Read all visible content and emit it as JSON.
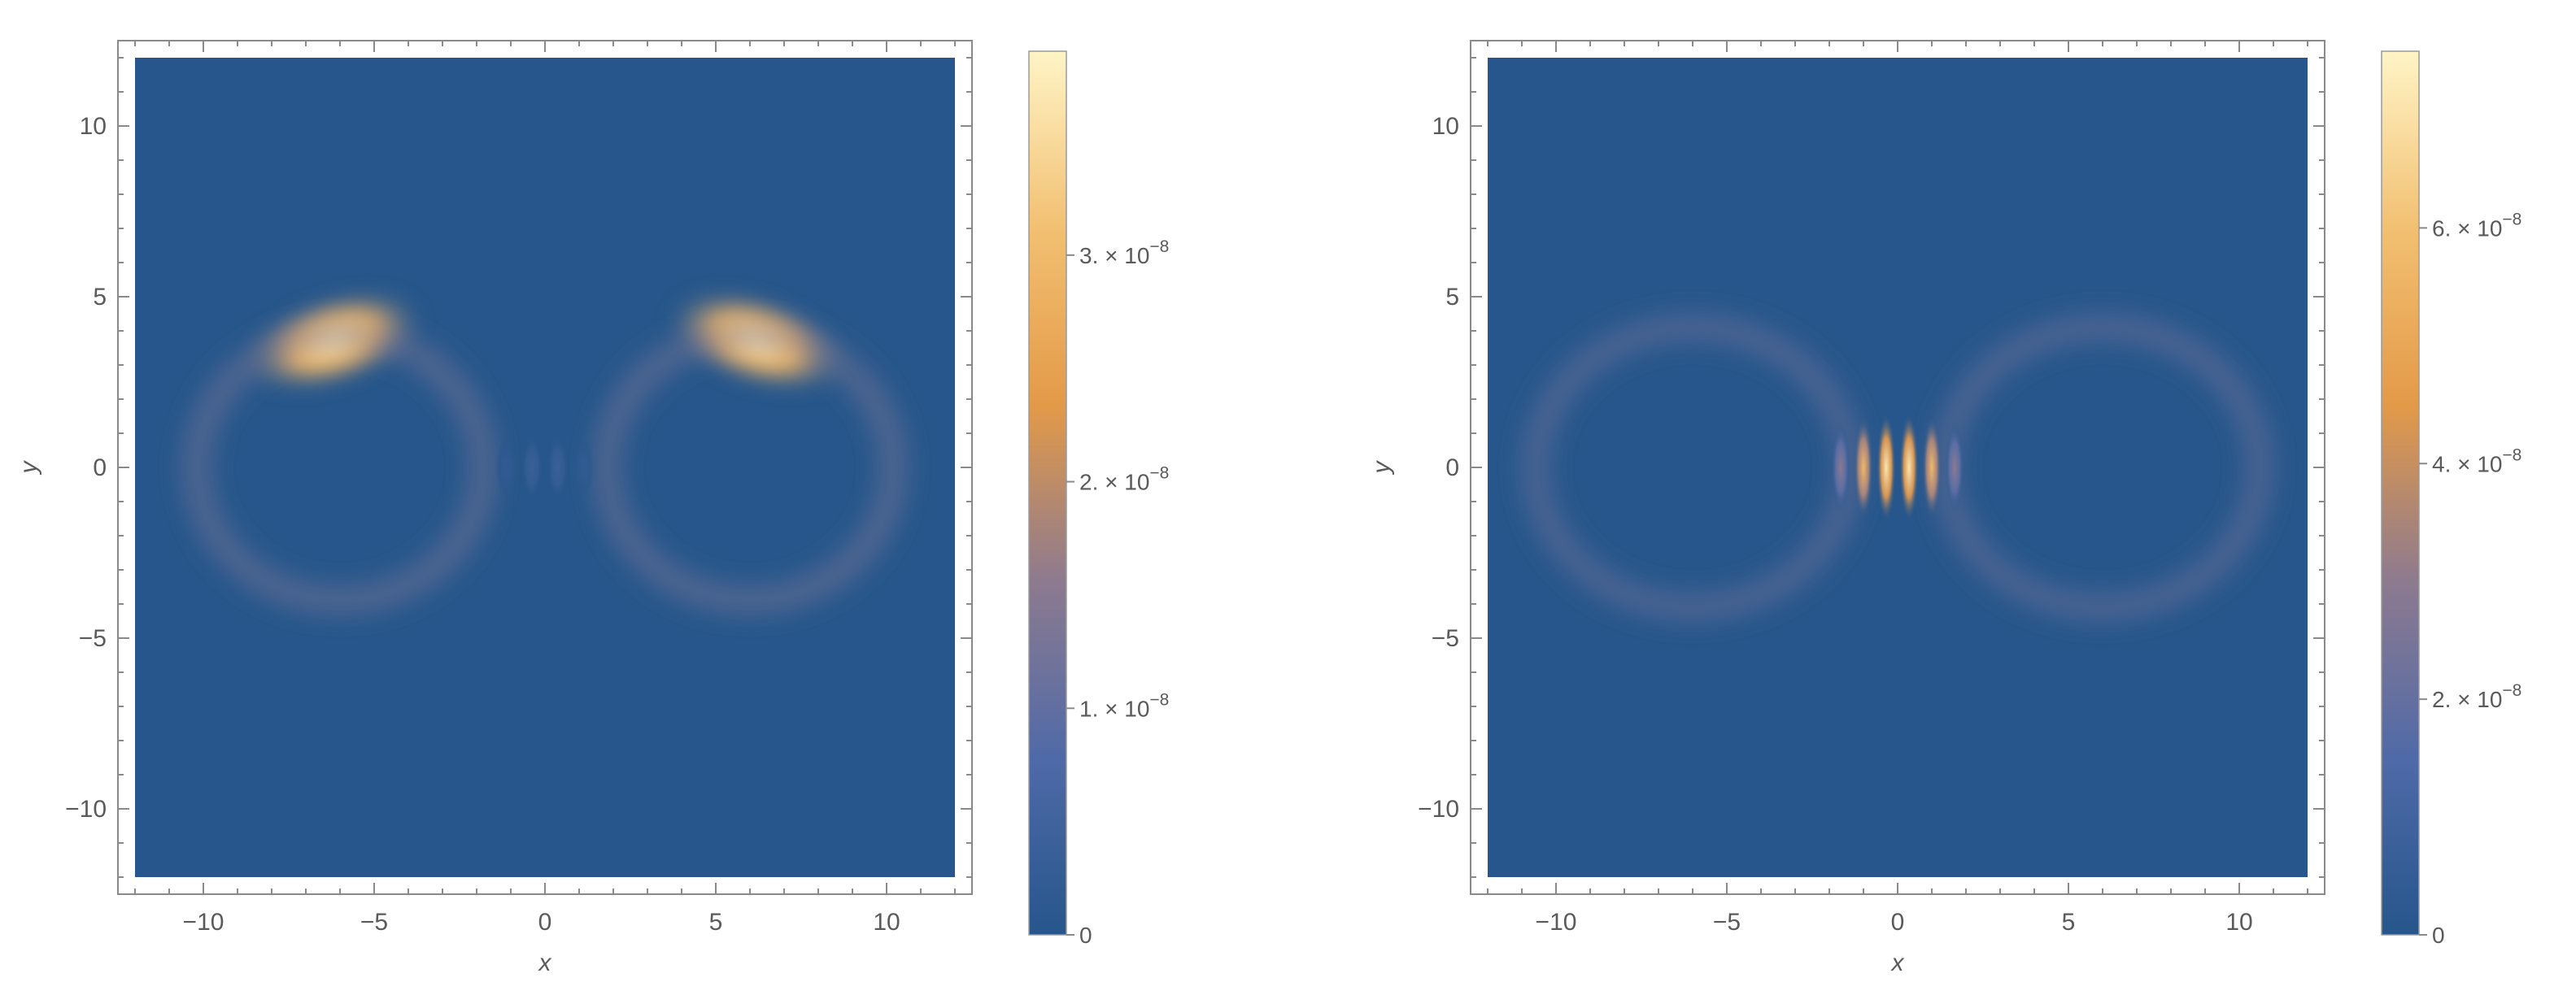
{
  "chart_data": [
    {
      "type": "heatmap",
      "title": "",
      "xlabel": "x",
      "ylabel": "y",
      "xlim": [
        -12.5,
        12.5
      ],
      "ylim": [
        -12.5,
        12.5
      ],
      "x_ticks": [
        -10,
        -5,
        0,
        5,
        10
      ],
      "y_ticks": [
        -10,
        -5,
        0,
        5,
        10
      ],
      "x_tick_labels": [
        "−10",
        "−5",
        "0",
        "5",
        "10"
      ],
      "y_tick_labels": [
        "−10",
        "−5",
        "0",
        "5",
        "10"
      ],
      "plot_extent": [
        -12,
        12
      ],
      "colorbar": {
        "min": 0,
        "max": 3.9e-08,
        "ticks": [
          {
            "value": 0,
            "mantissa": "0",
            "exponent": ""
          },
          {
            "value": 1e-08,
            "mantissa": "1. × 10",
            "exponent": "−8"
          },
          {
            "value": 2e-08,
            "mantissa": "2. × 10",
            "exponent": "−8"
          },
          {
            "value": 3e-08,
            "mantissa": "3. × 10",
            "exponent": "−8"
          }
        ]
      },
      "features": [
        {
          "kind": "lobe",
          "x": -6.2,
          "y": 3.7,
          "sx": 1.9,
          "sy": 0.75,
          "value": 3.8e-08
        },
        {
          "kind": "lobe",
          "x": 6.2,
          "y": 3.7,
          "sx": 1.9,
          "sy": 0.75,
          "value": 3.8e-08
        },
        {
          "kind": "ring",
          "cx": -6.0,
          "cy": 0.0,
          "rx": 4.2,
          "ry": 3.9,
          "value": 5e-09
        },
        {
          "kind": "ring",
          "cx": 6.0,
          "cy": 0.0,
          "rx": 4.2,
          "ry": 3.9,
          "value": 5e-09
        },
        {
          "kind": "fringes",
          "x": 0,
          "y": 0,
          "width": 3.0,
          "height": 2.0,
          "count": 4,
          "value": 4e-09
        }
      ]
    },
    {
      "type": "heatmap",
      "title": "",
      "xlabel": "x",
      "ylabel": "y",
      "xlim": [
        -12.5,
        12.5
      ],
      "ylim": [
        -12.5,
        12.5
      ],
      "x_ticks": [
        -10,
        -5,
        0,
        5,
        10
      ],
      "y_ticks": [
        -10,
        -5,
        0,
        5,
        10
      ],
      "x_tick_labels": [
        "−10",
        "−5",
        "0",
        "5",
        "10"
      ],
      "y_tick_labels": [
        "−10",
        "−5",
        "0",
        "5",
        "10"
      ],
      "plot_extent": [
        -12,
        12
      ],
      "colorbar": {
        "min": 0,
        "max": 7.5e-08,
        "ticks": [
          {
            "value": 0,
            "mantissa": "0",
            "exponent": ""
          },
          {
            "value": 2e-08,
            "mantissa": "2. × 10",
            "exponent": "−8"
          },
          {
            "value": 4e-08,
            "mantissa": "4. × 10",
            "exponent": "−8"
          },
          {
            "value": 6e-08,
            "mantissa": "6. × 10",
            "exponent": "−8"
          }
        ]
      },
      "features": [
        {
          "kind": "ring",
          "cx": -6.0,
          "cy": 0.0,
          "rx": 4.6,
          "ry": 4.1,
          "value": 7e-09
        },
        {
          "kind": "ring",
          "cx": 6.0,
          "cy": 0.0,
          "rx": 4.6,
          "ry": 4.1,
          "value": 7e-09
        },
        {
          "kind": "fringes",
          "x": 0,
          "y": 0,
          "width": 4.0,
          "height": 3.2,
          "count": 6,
          "value": 7.2e-08
        }
      ]
    }
  ],
  "colormap": [
    "#26568b",
    "#4f6aa8",
    "#8d7a8f",
    "#e39a48",
    "#f2c072",
    "#fff4c6"
  ]
}
